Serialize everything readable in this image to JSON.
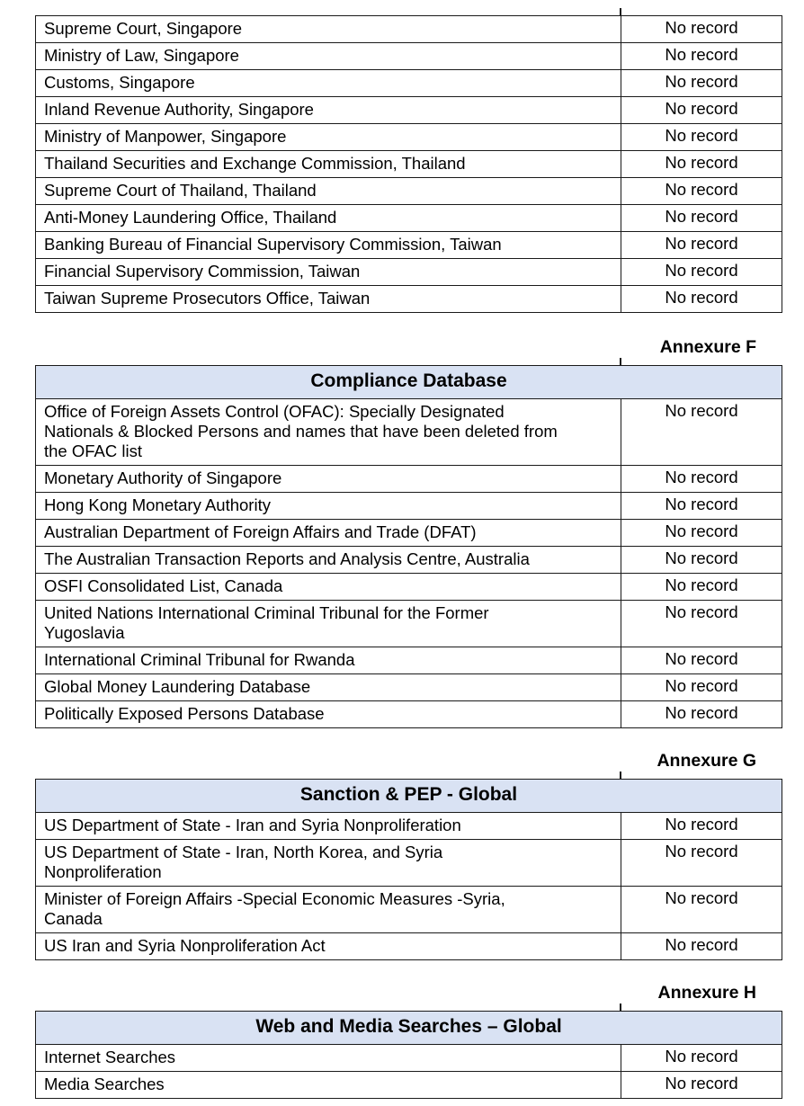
{
  "result_no_record": "No record",
  "colors": {
    "header_band_bg": "#d9e2f3",
    "table_border": "#1a1a1a",
    "text": "#000000",
    "page_bg": "#ffffff"
  },
  "tables": [
    {
      "title": null,
      "annexure": null,
      "rows": [
        {
          "source": "Supreme Court, Singapore",
          "result": "No record"
        },
        {
          "source": "Ministry of Law, Singapore",
          "result": "No record"
        },
        {
          "source": "Customs, Singapore",
          "result": "No record"
        },
        {
          "source": "Inland Revenue Authority, Singapore",
          "result": "No record"
        },
        {
          "source": "Ministry of Manpower, Singapore",
          "result": "No record"
        },
        {
          "source": "Thailand Securities and Exchange Commission, Thailand",
          "result": "No record"
        },
        {
          "source": "Supreme Court of Thailand, Thailand",
          "result": "No record"
        },
        {
          "source": "Anti-Money Laundering Office, Thailand",
          "result": "No record"
        },
        {
          "source": "Banking Bureau of Financial Supervisory Commission, Taiwan",
          "result": "No record"
        },
        {
          "source": "Financial Supervisory Commission, Taiwan",
          "result": "No record"
        },
        {
          "source": "Taiwan Supreme Prosecutors Office, Taiwan",
          "result": "No record"
        }
      ]
    },
    {
      "title": "Compliance Database",
      "annexure": "Annexure F",
      "rows": [
        {
          "source": "Office of Foreign Assets Control (OFAC): Specially Designated\nNationals & Blocked Persons and names that have been deleted from\nthe OFAC list",
          "result": "No record"
        },
        {
          "source": "Monetary Authority of Singapore",
          "result": "No record"
        },
        {
          "source": "Hong Kong Monetary Authority",
          "result": "No record"
        },
        {
          "source": "Australian Department of Foreign Affairs and Trade (DFAT)",
          "result": "No record"
        },
        {
          "source": "The Australian Transaction Reports and Analysis Centre, Australia",
          "result": "No record"
        },
        {
          "source": "OSFI Consolidated List, Canada",
          "result": "No record"
        },
        {
          "source": "United Nations International Criminal Tribunal for the Former\nYugoslavia",
          "result": "No record"
        },
        {
          "source": "International Criminal Tribunal for Rwanda",
          "result": "No record"
        },
        {
          "source": "Global Money Laundering Database",
          "result": "No record"
        },
        {
          "source": "Politically Exposed Persons Database",
          "result": "No record"
        }
      ]
    },
    {
      "title": "Sanction & PEP - Global",
      "annexure": "Annexure G",
      "rows": [
        {
          "source": "US Department of State - Iran and Syria Nonproliferation",
          "result": "No record"
        },
        {
          "source": "US Department of State - Iran, North Korea, and Syria\nNonproliferation",
          "result": "No record"
        },
        {
          "source": "Minister of Foreign Affairs -Special Economic Measures -Syria,\nCanada",
          "result": "No record"
        },
        {
          "source": "US Iran and Syria Nonproliferation Act",
          "result": "No record"
        }
      ]
    },
    {
      "title": "Web and Media Searches – Global",
      "annexure": "Annexure H",
      "rows": [
        {
          "source": "Internet Searches",
          "result": "No record"
        },
        {
          "source": "Media Searches",
          "result": "No record"
        }
      ]
    }
  ]
}
